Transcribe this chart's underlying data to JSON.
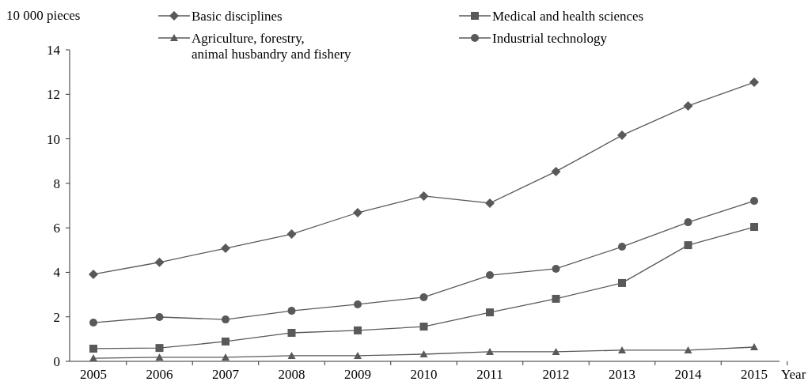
{
  "chart_data": {
    "type": "line",
    "xlabel": "Year",
    "ylabel": "10 000 pieces",
    "categories": [
      "2005",
      "2006",
      "2007",
      "2008",
      "2009",
      "2010",
      "2011",
      "2012",
      "2013",
      "2014",
      "2015"
    ],
    "ylim": [
      0,
      14
    ],
    "yticks": [
      0,
      2,
      4,
      6,
      8,
      10,
      12,
      14
    ],
    "grid": false,
    "legend": "top",
    "series": [
      {
        "name": "Basic disciplines",
        "color": "#595959",
        "marker": "diamond",
        "values": [
          3.91,
          4.45,
          5.08,
          5.72,
          6.68,
          7.43,
          7.11,
          8.53,
          10.16,
          11.48,
          12.54
        ]
      },
      {
        "name": "Medical and health sciences",
        "color": "#595959",
        "marker": "square",
        "values": [
          0.57,
          0.6,
          0.89,
          1.28,
          1.39,
          1.56,
          2.2,
          2.81,
          3.52,
          5.22,
          6.04
        ]
      },
      {
        "name": "Agriculture, forestry,\nanimal husbandry and fishery",
        "color": "#595959",
        "marker": "triangle",
        "values": [
          0.14,
          0.18,
          0.18,
          0.25,
          0.25,
          0.32,
          0.43,
          0.43,
          0.5,
          0.5,
          0.64
        ]
      },
      {
        "name": "Industrial technology",
        "color": "#595959",
        "marker": "circle",
        "values": [
          1.74,
          1.99,
          1.88,
          2.27,
          2.56,
          2.88,
          3.87,
          4.16,
          5.15,
          6.25,
          7.21
        ]
      }
    ]
  }
}
